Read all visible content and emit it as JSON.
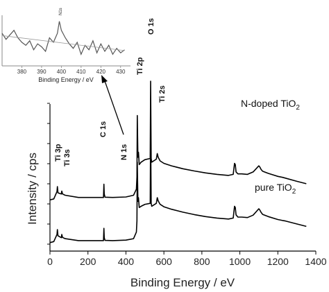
{
  "chart_data": [
    {
      "type": "line",
      "xlabel": "Binding Energy / eV",
      "ylabel": "Intensity / cps",
      "xlim": [
        0,
        1400
      ],
      "xticks": [
        "0",
        "200",
        "400",
        "600",
        "800",
        "1000",
        "1200",
        "1400"
      ],
      "grid": false,
      "annotations": {
        "ti3p": "Ti 3p",
        "ti3s": "Ti 3s",
        "c1s": "C 1s",
        "n1s": "N 1s",
        "ti2p": "Ti 2p",
        "o1s": "O 1s",
        "ti2s": "Ti 2s"
      },
      "series": [
        {
          "name_main": "N-doped TiO",
          "name_sub": "2",
          "baseline": 1.75,
          "x": [
            0,
            20,
            37,
            39,
            42,
            60,
            62,
            66,
            80,
            150,
            282,
            284,
            286,
            290,
            330,
            400,
            440,
            455,
            458,
            460,
            463,
            466,
            470,
            480,
            500,
            528,
            530,
            533,
            536,
            540,
            560,
            565,
            570,
            580,
            600,
            640,
            700,
            760,
            820,
            880,
            940,
            965,
            972,
            976,
            980,
            990,
            1010,
            1040,
            1070,
            1100,
            1105,
            1112,
            1120,
            1150,
            1200,
            1225,
            1240,
            1300,
            1350
          ],
          "values": [
            1.76,
            1.8,
            2.1,
            2.3,
            2.05,
            2.0,
            2.12,
            2.0,
            1.95,
            1.86,
            1.86,
            2.4,
            2.0,
            1.87,
            1.86,
            1.88,
            1.95,
            2.2,
            2.7,
            5.2,
            3.5,
            3.7,
            3.2,
            3.3,
            3.4,
            3.45,
            6.6,
            3.45,
            3.3,
            3.32,
            3.42,
            3.65,
            3.5,
            3.35,
            3.25,
            3.15,
            3.03,
            2.94,
            2.86,
            2.8,
            2.76,
            2.8,
            3.25,
            3.2,
            2.9,
            2.82,
            2.82,
            2.8,
            2.9,
            3.15,
            3.1,
            3.0,
            2.93,
            2.84,
            2.72,
            2.68,
            2.65,
            2.52,
            2.42
          ]
        },
        {
          "name_main": "pure TiO",
          "name_sub": "2",
          "baseline": 0.0,
          "x": [
            0,
            20,
            37,
            39,
            42,
            60,
            62,
            66,
            80,
            150,
            282,
            284,
            286,
            290,
            330,
            400,
            440,
            455,
            458,
            460,
            463,
            466,
            470,
            480,
            500,
            528,
            530,
            533,
            536,
            540,
            560,
            565,
            570,
            580,
            600,
            640,
            700,
            760,
            820,
            880,
            940,
            965,
            972,
            976,
            980,
            990,
            1010,
            1040,
            1070,
            1100,
            1105,
            1112,
            1120,
            1150,
            1200,
            1225,
            1240,
            1300,
            1350
          ],
          "values": [
            0.02,
            0.06,
            0.35,
            0.55,
            0.3,
            0.22,
            0.35,
            0.23,
            0.18,
            0.1,
            0.1,
            0.6,
            0.22,
            0.11,
            0.1,
            0.12,
            0.18,
            0.45,
            0.9,
            3.3,
            1.7,
            1.85,
            1.45,
            1.5,
            1.58,
            1.62,
            4.75,
            1.62,
            1.5,
            1.52,
            1.62,
            1.85,
            1.72,
            1.58,
            1.48,
            1.38,
            1.26,
            1.16,
            1.08,
            1.02,
            0.98,
            1.02,
            1.5,
            1.45,
            1.15,
            1.06,
            1.06,
            1.04,
            1.14,
            1.4,
            1.35,
            1.25,
            1.17,
            1.08,
            0.96,
            0.92,
            0.9,
            0.78,
            0.68
          ]
        }
      ]
    },
    {
      "type": "line",
      "xlabel": "Binding Energy / eV",
      "xlim": [
        370,
        435
      ],
      "xticks": [
        "380",
        "390",
        "400",
        "410",
        "420",
        "430"
      ],
      "annotation": "N1s",
      "series": [
        {
          "x": [
            370,
            372,
            374,
            376,
            378,
            380,
            382,
            384,
            386,
            388,
            390,
            392,
            394,
            396,
            398,
            399,
            400,
            402,
            404,
            406,
            408,
            410,
            412,
            414,
            416,
            418,
            420,
            422,
            424,
            426,
            428,
            430,
            432
          ],
          "values": [
            2.6,
            2.2,
            2.5,
            2.8,
            2.3,
            2.0,
            1.8,
            2.1,
            1.5,
            1.9,
            1.7,
            1.4,
            2.3,
            2.0,
            2.6,
            3.4,
            2.8,
            2.3,
            1.9,
            1.6,
            2.0,
            1.2,
            1.8,
            1.5,
            2.1,
            1.3,
            1.9,
            1.4,
            1.8,
            1.2,
            1.6,
            1.3,
            1.5
          ]
        },
        {
          "x": [
            370,
            432
          ],
          "values": [
            2.45,
            1.45
          ]
        }
      ]
    }
  ]
}
